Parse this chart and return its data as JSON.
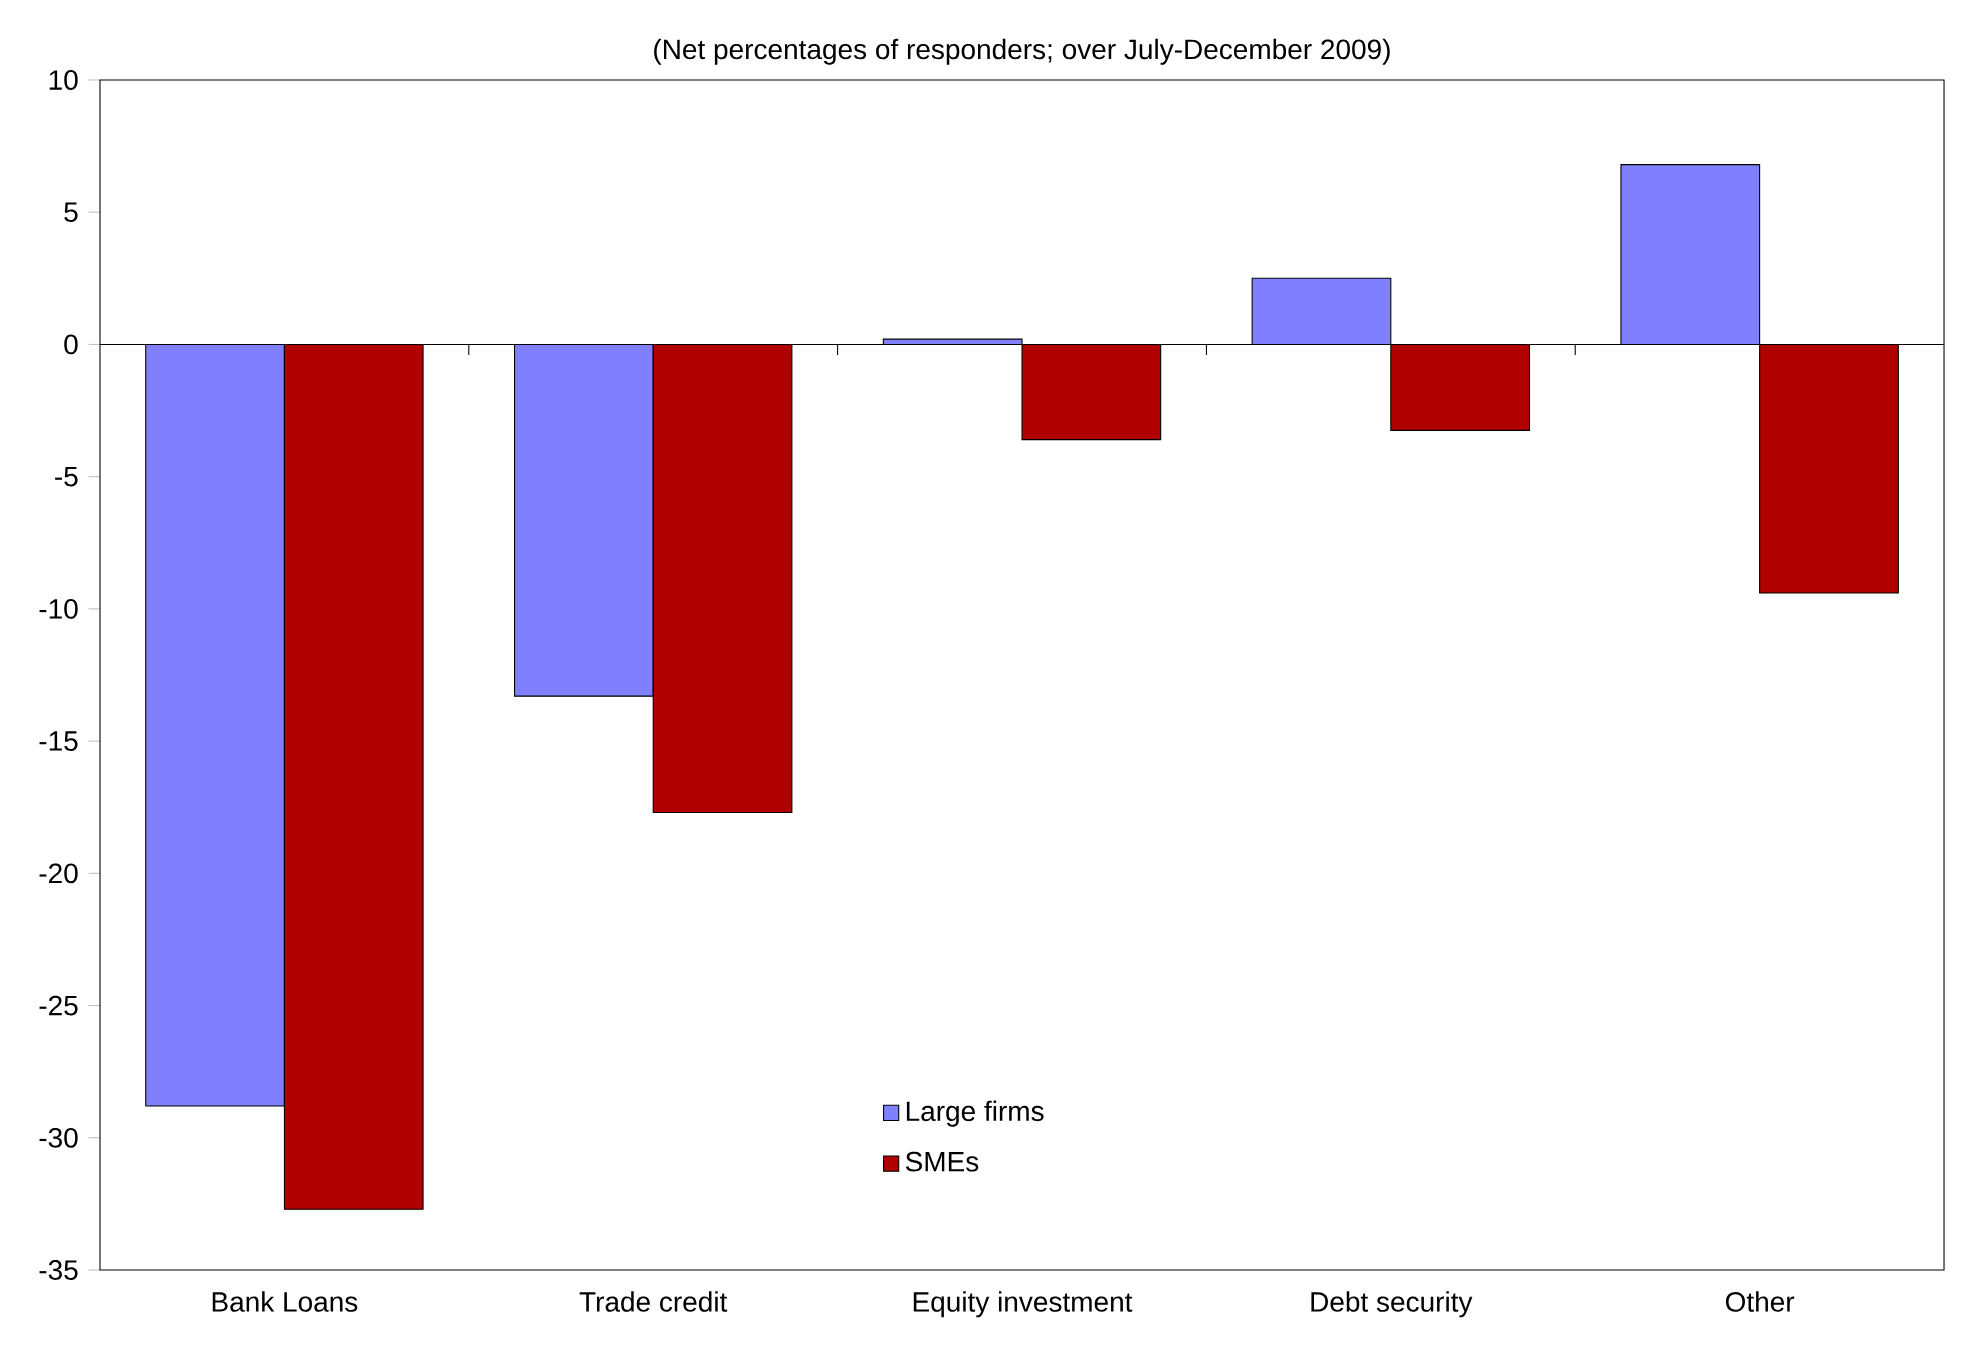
{
  "chart_data": {
    "type": "bar",
    "title": "(Net percentages of responders; over July-December 2009)",
    "categories": [
      "Bank Loans",
      "Trade credit",
      "Equity investment",
      "Debt security",
      "Other"
    ],
    "series": [
      {
        "name": "Large firms",
        "color": "#8080ff",
        "values": [
          -28.8,
          -13.3,
          0.2,
          2.5,
          6.8
        ]
      },
      {
        "name": "SMEs",
        "color": "#b00000",
        "values": [
          -32.7,
          -17.7,
          -3.6,
          -3.25,
          -9.4
        ]
      }
    ],
    "ylim": [
      -35,
      10
    ],
    "yticks": [
      -35,
      -30,
      -25,
      -20,
      -15,
      -10,
      -5,
      0,
      5,
      10
    ],
    "legend": "bottom"
  }
}
